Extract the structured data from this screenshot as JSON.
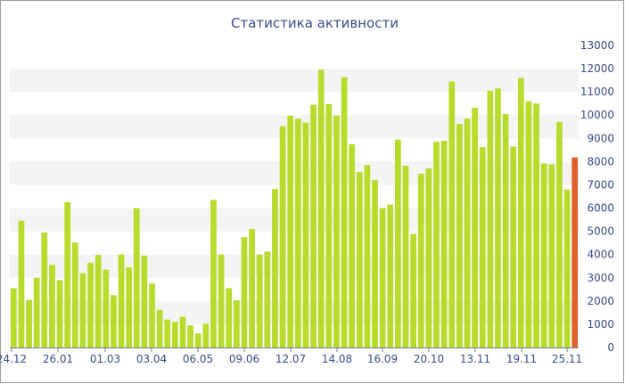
{
  "chart_data": {
    "type": "bar",
    "title": "Статистика активности",
    "xlabel": "",
    "ylabel": "",
    "ylim": [
      0,
      13000
    ],
    "y_ticks": [
      0,
      1000,
      2000,
      3000,
      4000,
      5000,
      6000,
      7000,
      8000,
      9000,
      10000,
      11000,
      12000,
      13000
    ],
    "y_axis_position": "right",
    "grid": "alternating horizontal bands",
    "x_tick_labels": [
      "24.12",
      "26.01",
      "01.03",
      "03.04",
      "06.05",
      "09.06",
      "12.07",
      "14.08",
      "16.09",
      "20.10",
      "13.11",
      "19.11",
      "25.11"
    ],
    "values": [
      2550,
      5450,
      2050,
      3000,
      4950,
      3550,
      2900,
      6250,
      4520,
      3200,
      3650,
      3980,
      3350,
      2250,
      4000,
      3450,
      6000,
      3950,
      2750,
      1620,
      1200,
      1100,
      1320,
      950,
      600,
      1020,
      6350,
      4000,
      2550,
      2030,
      4750,
      5100,
      4000,
      4130,
      6820,
      9520,
      9980,
      9850,
      9680,
      10450,
      11950,
      10480,
      9980,
      11630,
      8750,
      7550,
      7850,
      7200,
      6000,
      6150,
      8950,
      7820,
      4880,
      7480,
      7700,
      8850,
      8900,
      11450,
      9620,
      9850,
      10320,
      8620,
      11050,
      11150,
      10050,
      8650,
      11600,
      10600,
      10500,
      7920,
      7880,
      9700,
      6800,
      8180
    ],
    "highlight_index": 73,
    "colors": {
      "bar": "#b7dc2c",
      "highlight": "#e0602c",
      "band": "#f4f4f4",
      "text": "#3a4a8a",
      "axis": "#6f7f95"
    }
  }
}
